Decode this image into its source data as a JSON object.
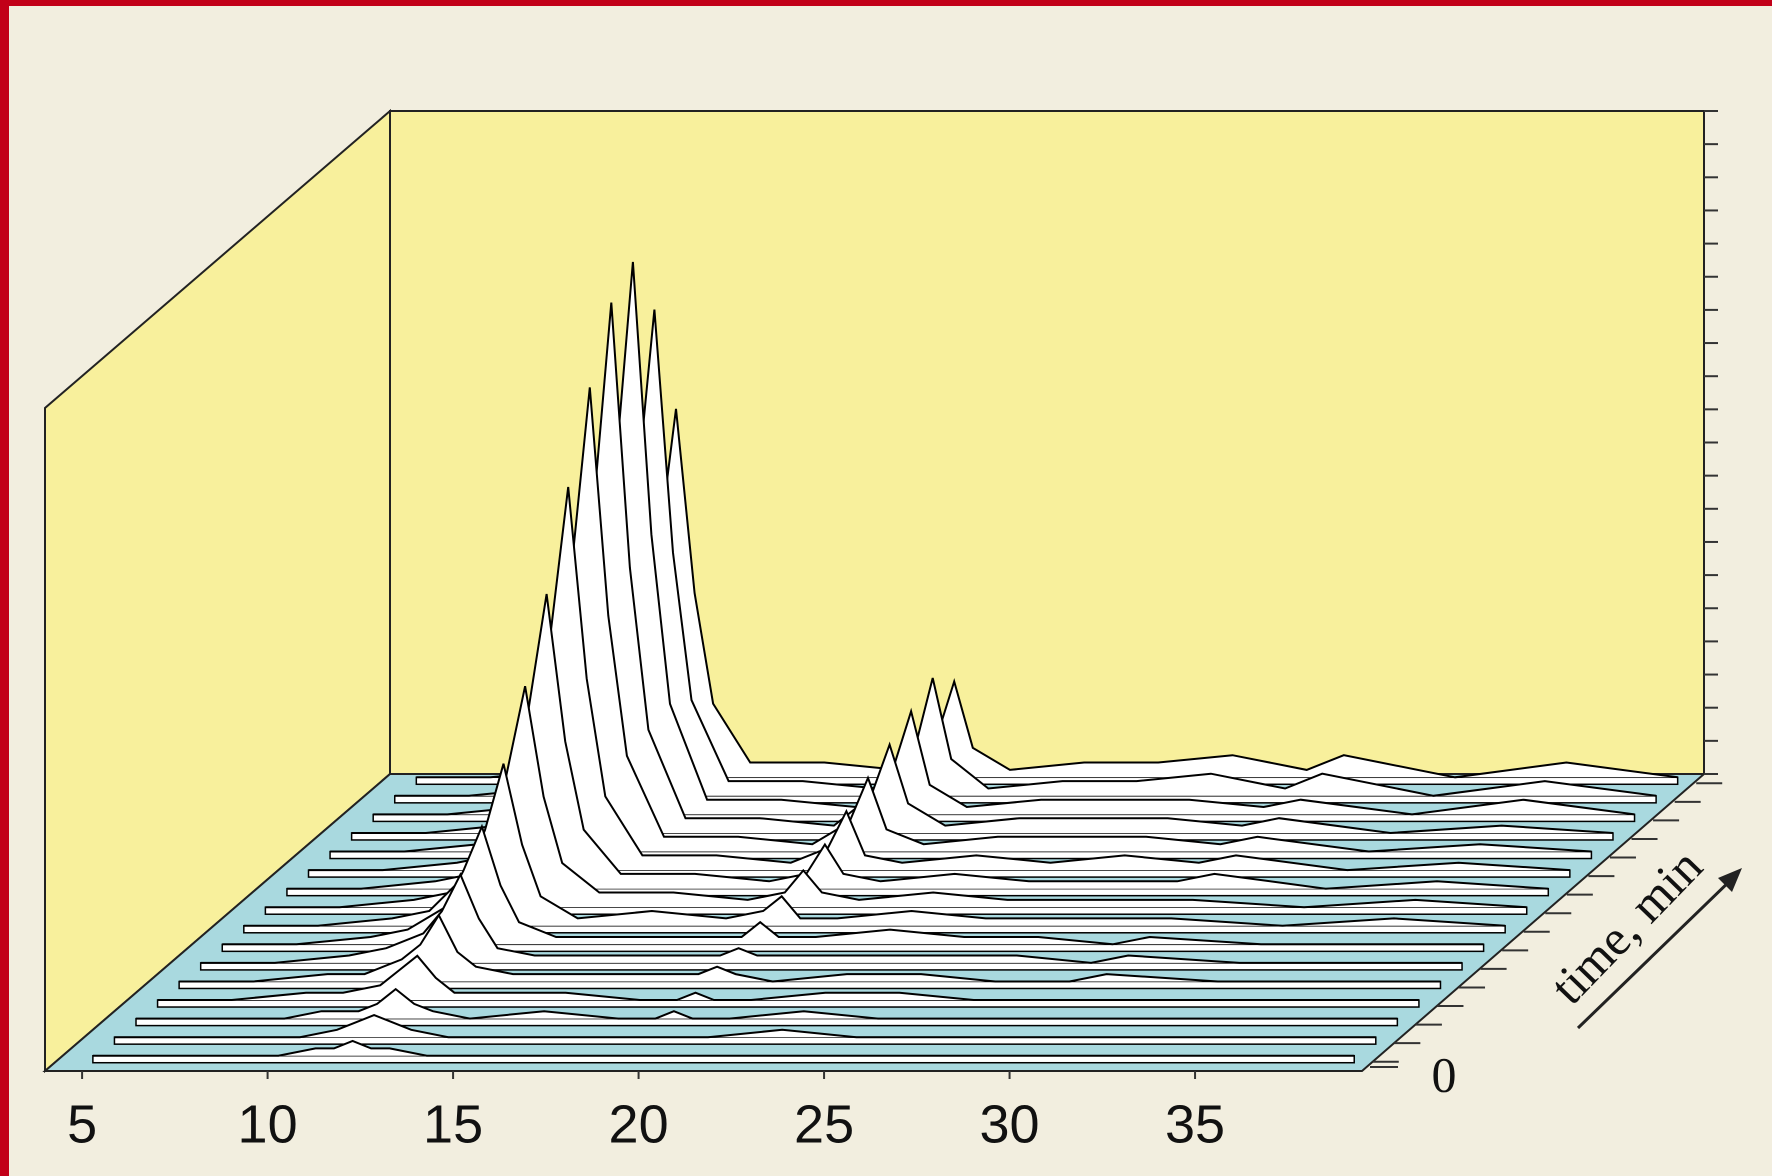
{
  "chart_data": {
    "type": "waterfall",
    "xlim": [
      4,
      39.5
    ],
    "xticks": [
      5,
      10,
      15,
      20,
      25,
      30,
      35
    ],
    "ylim": [
      0,
      90
    ],
    "z_label": "time, min",
    "zticks": [
      0
    ],
    "line_color": "#000000",
    "trace_fill": "#ffffff",
    "wall_color": "#f8f09c",
    "floor_color": "#a9d9df",
    "x": [
      5,
      7,
      9,
      10,
      11,
      11.5,
      12,
      12.5,
      13,
      14,
      16,
      18,
      19,
      19.5,
      20,
      21,
      23,
      25,
      27,
      29,
      30,
      33,
      36,
      39
    ],
    "series": [
      {
        "values": [
          0,
          0,
          0,
          0,
          1,
          1,
          2,
          1,
          1,
          0,
          0,
          0,
          0,
          0,
          0,
          0,
          0,
          0,
          0,
          0,
          0,
          0,
          0,
          0
        ]
      },
      {
        "values": [
          0,
          0,
          0,
          0,
          1,
          2,
          3,
          2,
          1,
          0,
          0,
          0,
          0,
          0,
          0,
          0,
          1,
          0,
          0,
          0,
          0,
          0,
          0,
          0
        ]
      },
      {
        "values": [
          0,
          0,
          0,
          1,
          1,
          2,
          4,
          2,
          1,
          0,
          1,
          0,
          0,
          1,
          0,
          0,
          1,
          0,
          0,
          0,
          0,
          0,
          0,
          0
        ]
      },
      {
        "values": [
          0,
          0,
          1,
          1,
          2,
          4,
          6,
          3,
          1,
          1,
          1,
          0,
          0,
          1,
          0,
          0,
          1,
          1,
          0,
          0,
          0,
          0,
          0,
          0
        ]
      },
      {
        "values": [
          0,
          0,
          1,
          1,
          3,
          5,
          9,
          4,
          2,
          1,
          1,
          1,
          1,
          2,
          1,
          0,
          1,
          1,
          0,
          0,
          1,
          0,
          0,
          0
        ]
      },
      {
        "values": [
          0,
          0,
          1,
          2,
          4,
          7,
          12,
          6,
          2,
          1,
          1,
          1,
          1,
          2,
          1,
          1,
          1,
          1,
          1,
          0,
          1,
          0,
          0,
          0
        ]
      },
      {
        "values": [
          0,
          0,
          1,
          2,
          5,
          10,
          16,
          8,
          3,
          1,
          1,
          1,
          1,
          3,
          1,
          1,
          2,
          1,
          1,
          0,
          1,
          0,
          0,
          0
        ]
      },
      {
        "values": [
          0,
          0,
          1,
          2,
          7,
          13,
          22,
          11,
          4,
          1,
          2,
          1,
          2,
          4,
          1,
          1,
          2,
          1,
          1,
          1,
          1,
          0,
          1,
          0
        ]
      },
      {
        "values": [
          0,
          0,
          1,
          2,
          9,
          18,
          30,
          15,
          6,
          2,
          2,
          1,
          2,
          5,
          2,
          1,
          2,
          1,
          1,
          1,
          1,
          0,
          1,
          0
        ]
      },
      {
        "values": [
          0,
          0,
          1,
          2,
          12,
          24,
          40,
          20,
          8,
          2,
          2,
          1,
          2,
          6,
          2,
          1,
          2,
          1,
          1,
          1,
          2,
          0,
          1,
          0
        ]
      },
      {
        "values": [
          0,
          0,
          1,
          2,
          16,
          31,
          52,
          26,
          10,
          2,
          2,
          1,
          3,
          8,
          2,
          1,
          2,
          1,
          2,
          1,
          2,
          0,
          1,
          0
        ]
      },
      {
        "values": [
          0,
          0,
          1,
          2,
          19,
          38,
          63,
          32,
          13,
          2,
          2,
          1,
          4,
          10,
          3,
          1,
          2,
          2,
          2,
          1,
          2,
          0,
          1,
          0
        ]
      },
      {
        "values": [
          0,
          0,
          1,
          2,
          22,
          43,
          72,
          36,
          14,
          2,
          2,
          1,
          5,
          12,
          4,
          1,
          2,
          2,
          2,
          1,
          2,
          0,
          1,
          0
        ]
      },
      {
        "values": [
          0,
          0,
          1,
          2,
          23,
          45,
          75,
          38,
          15,
          2,
          2,
          1,
          6,
          14,
          4,
          1,
          2,
          2,
          2,
          1,
          2,
          0,
          2,
          0
        ]
      },
      {
        "values": [
          0,
          0,
          1,
          2,
          20,
          40,
          66,
          33,
          13,
          2,
          2,
          1,
          6,
          16,
          5,
          1,
          2,
          2,
          3,
          1,
          3,
          0,
          2,
          0
        ]
      },
      {
        "values": [
          0,
          0,
          1,
          2,
          15,
          30,
          50,
          25,
          10,
          2,
          2,
          1,
          5,
          13,
          4,
          1,
          2,
          2,
          3,
          1,
          3,
          0,
          2,
          0
        ]
      }
    ]
  }
}
